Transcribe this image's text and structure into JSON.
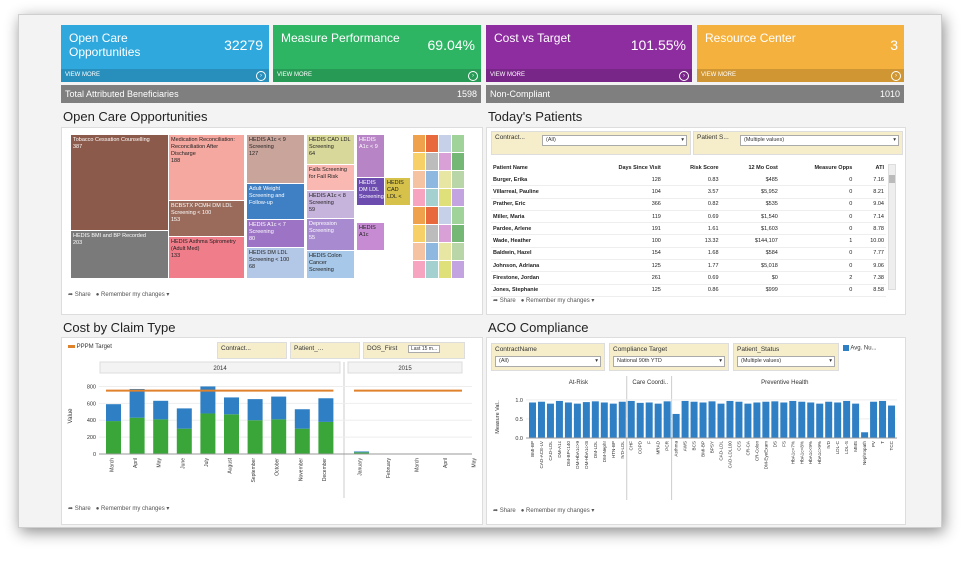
{
  "kpis": [
    {
      "title": "Open Care Opportunities",
      "value": "32279",
      "more": "VIEW MORE",
      "color": "#2fa8dd"
    },
    {
      "title": "Measure Performance",
      "value": "69.04%",
      "more": "VIEW MORE",
      "color": "#2eb564"
    },
    {
      "title": "Cost vs Target",
      "value": "101.55%",
      "more": "VIEW MORE",
      "color": "#8e2da0"
    },
    {
      "title": "Resource Center",
      "value": "3",
      "more": "VIEW MORE",
      "color": "#f5b13d"
    }
  ],
  "summary": {
    "beneficiaries_label": "Total Attributed Beneficiaries",
    "beneficiaries_value": "1598",
    "noncompliant_label": "Non-Compliant",
    "noncompliant_value": "1010"
  },
  "open_care": {
    "title": "Open Care Opportunities",
    "tiles": [
      {
        "label": "Tobacco Cessation Counselling",
        "value": "387",
        "color": "#8c5a4a"
      },
      {
        "label": "HEDIS BMI and BP Recorded",
        "value": "203",
        "color": "#7a7a7a"
      },
      {
        "label": "Medication Reconciliation: Reconciliation After Discharge",
        "value": "188",
        "color": "#f4a8a0"
      },
      {
        "label": "BCBSTX PCMH DM LDL Screening < 100",
        "value": "153",
        "color": "#9a6b5b"
      },
      {
        "label": "HEDIS Asthma Spirometry (Adult Med)",
        "value": "133",
        "color": "#f07d8a"
      },
      {
        "label": "HEDIS A1c < 9 Screening",
        "value": "127",
        "color": "#c9a49b"
      },
      {
        "label": "Adult Weight Screening and Follow-up",
        "value": "",
        "color": "#3f7fc4"
      },
      {
        "label": "HEDIS A1c < 7 Screening",
        "value": "80",
        "color": "#9d73c6"
      },
      {
        "label": "HEDIS DM LDL Screening < 100",
        "value": "68",
        "color": "#b3c7e6"
      },
      {
        "label": "HEDIS CAD LDL Screening",
        "value": "64",
        "color": "#d8d89a"
      },
      {
        "label": "Falls Screening for Fall Risk",
        "value": "",
        "color": "#f9b9b2"
      },
      {
        "label": "HEDIS A1c < 8 Screening",
        "value": "59",
        "color": "#c7b4dc"
      },
      {
        "label": "Depression Screening",
        "value": "55",
        "color": "#a88ad1"
      },
      {
        "label": "HEDIS Colon Cancer Screening",
        "value": "",
        "color": "#a7c8e8"
      },
      {
        "label": "HEDIS A1c < 9",
        "value": "",
        "color": "#b784c5"
      },
      {
        "label": "HEDIS DM LDL Screening",
        "value": "",
        "color": "#6d4cb0"
      },
      {
        "label": "HEDIS CAD LDL <",
        "value": "",
        "color": "#d6c24a"
      },
      {
        "label": "HEDIS A1c",
        "value": "",
        "color": "#c78bd3"
      }
    ],
    "footer_share": "Share",
    "footer_remember": "Remember my changes"
  },
  "patients": {
    "title": "Today's Patients",
    "filter1_label": "Contract...",
    "filter1_value": "(All)",
    "filter2_label": "Patient S...",
    "filter2_value": "(Multiple values)",
    "columns": [
      "Patient Name",
      "Days Since Visit",
      "Risk Score",
      "12 Mo Cost",
      "Measure Opps",
      "ATI"
    ],
    "rows": [
      [
        "Burger, Erika",
        "128",
        "0.83",
        "$485",
        "0",
        "7.16"
      ],
      [
        "Villarreal, Pauline",
        "104",
        "3.57",
        "$5,952",
        "0",
        "8.21"
      ],
      [
        "Prather, Eric",
        "366",
        "0.82",
        "$535",
        "0",
        "9.04"
      ],
      [
        "Miller, Maria",
        "119",
        "0.69",
        "$1,540",
        "0",
        "7.14"
      ],
      [
        "Pardee, Arlene",
        "191",
        "1.61",
        "$1,603",
        "0",
        "8.78"
      ],
      [
        "Wade, Heather",
        "100",
        "13.32",
        "$144,107",
        "1",
        "10.00"
      ],
      [
        "Baldwin, Hazel",
        "154",
        "1.68",
        "$584",
        "0",
        "7.77"
      ],
      [
        "Johnson, Adriana",
        "125",
        "1.77",
        "$5,018",
        "0",
        "9.06"
      ],
      [
        "Firestone, Jordan",
        "261",
        "0.69",
        "$0",
        "2",
        "7.38"
      ],
      [
        "Jones, Stephanie",
        "125",
        "0.86",
        "$999",
        "0",
        "8.58"
      ]
    ],
    "footer_share": "Share",
    "footer_remember": "Remember my changes"
  },
  "cost_claim": {
    "title": "Cost by Claim Type",
    "legend": "PPPM Target",
    "filter1": "Contract...",
    "filter2": "Patient_...",
    "filter3_label": "DOS_First",
    "filter3_value": "Last 15 m...",
    "footer_share": "Share",
    "footer_remember": "Remember my changes"
  },
  "aco": {
    "title": "ACO Compliance",
    "filter1_label": "ContractName",
    "filter1_value": "(All)",
    "filter2_label": "Compliance Target",
    "filter2_value": "National 90th YTD",
    "filter3_label": "Patient_Status",
    "filter3_value": "(Multiple values)",
    "legend": "Avg. Nu...",
    "footer_share": "Share",
    "footer_remember": "Remember my changes"
  },
  "chart_data": [
    {
      "type": "bar",
      "title": "",
      "panels": [
        "2014",
        "2015"
      ],
      "categories": [
        "March",
        "April",
        "May",
        "June",
        "July",
        "August",
        "September",
        "October",
        "November",
        "December",
        "January",
        "February",
        "March",
        "April",
        "May"
      ],
      "series": [
        {
          "name": "",
          "color": "#3aa63a",
          "values": [
            390,
            430,
            410,
            300,
            480,
            470,
            400,
            410,
            300,
            380,
            20,
            0,
            0,
            0,
            0
          ]
        },
        {
          "name": "",
          "color": "#2f7fc4",
          "values": [
            200,
            340,
            220,
            240,
            320,
            200,
            250,
            270,
            230,
            280,
            10,
            0,
            0,
            0,
            0
          ]
        }
      ],
      "target_line": 750,
      "ylabel": "Value",
      "ylim": [
        0,
        900
      ],
      "yticks": [
        0,
        200,
        400,
        600,
        800
      ]
    },
    {
      "type": "bar",
      "title": "",
      "groups": [
        "At-Risk",
        "Care Coordi..",
        "Preventive Health"
      ],
      "categories": [
        "BMI-BP",
        "CAD-ACE-LV",
        "CAD-LDL",
        "DM-A1c",
        "DM-BP<140",
        "DM-HbA1c>9",
        "DM-HbA1c<8",
        "DM-LDL",
        "DM-Nephr",
        "HTN-BP",
        "IVD-LDL",
        "CHF",
        "COPD",
        "F",
        "MRAD",
        "PCR",
        "Asthma",
        "AWS",
        "BCS",
        "BMI-BP",
        "BPSY",
        "CAD-LDL",
        "CAD-LDL100",
        "CCS",
        "CR-CA",
        "CR-Colon",
        "DM-EyeExam",
        "DS",
        "FS",
        "HbA1c<7%",
        "HbA1c<8%",
        "HbA1c<9%",
        "HbA1c>9%",
        "IVD",
        "LDL-C",
        "LDL-S",
        "MMS",
        "Nephropath",
        "PV",
        "T",
        "TCC"
      ],
      "values": [
        0.93,
        0.95,
        0.9,
        0.97,
        0.93,
        0.9,
        0.94,
        0.96,
        0.93,
        0.9,
        0.95,
        0.97,
        0.92,
        0.93,
        0.9,
        0.96,
        0.63,
        0.97,
        0.95,
        0.93,
        0.96,
        0.9,
        0.97,
        0.95,
        0.9,
        0.93,
        0.95,
        0.96,
        0.93,
        0.97,
        0.95,
        0.93,
        0.9,
        0.95,
        0.93,
        0.97,
        0.9,
        0.15,
        0.95,
        0.97,
        0.85
      ],
      "ylabel": "Measure Val..",
      "ylim": [
        0,
        1.1
      ],
      "yticks": [
        0.0,
        0.5,
        1.0
      ]
    }
  ]
}
